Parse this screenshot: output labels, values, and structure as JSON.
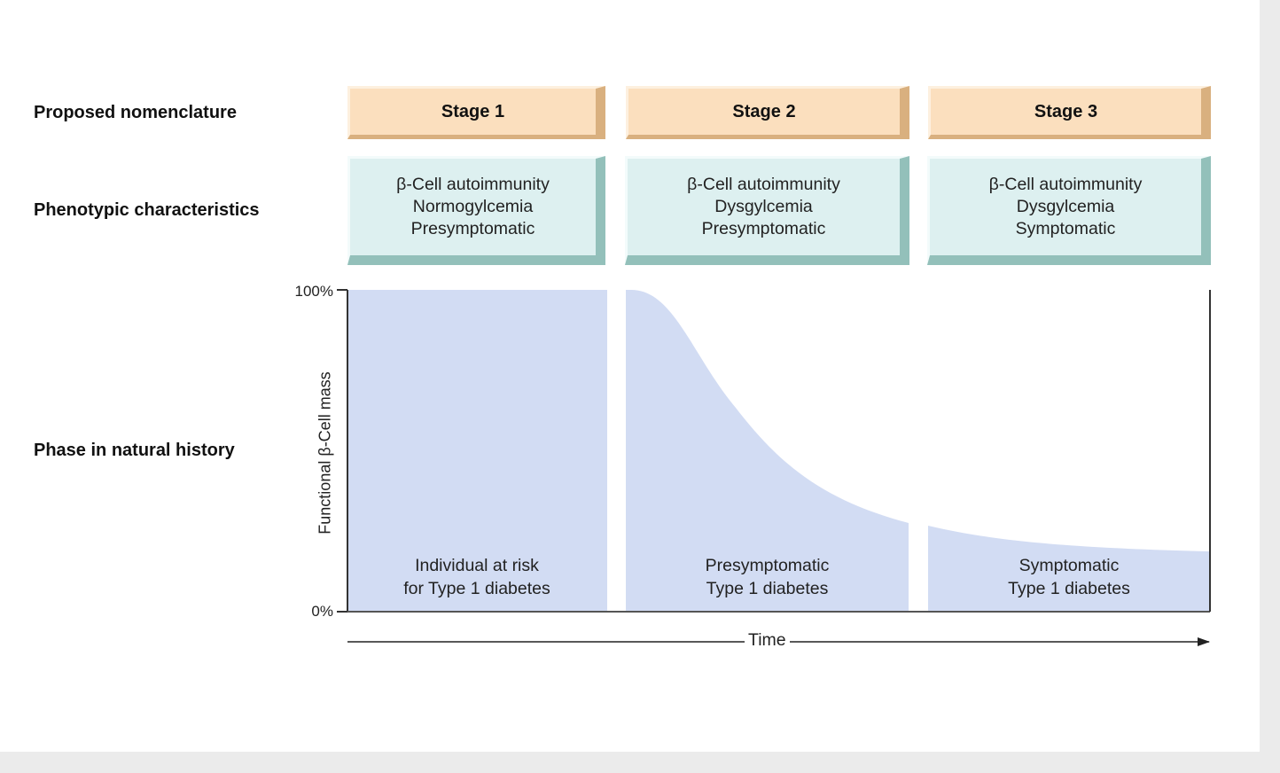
{
  "rows": {
    "nomenclature": "Proposed nomenclature",
    "phenotypic": "Phenotypic characteristics",
    "phase": "Phase in natural history"
  },
  "stages": [
    {
      "label": "Stage 1",
      "lines": [
        "β-Cell autoimmunity",
        "Normogylcemia",
        "Presymptomatic"
      ],
      "phase": [
        "Individual at risk",
        "for Type 1 diabetes"
      ]
    },
    {
      "label": "Stage 2",
      "lines": [
        "β-Cell autoimmunity",
        "Dysgylcemia",
        "Presymptomatic"
      ],
      "phase": [
        "Presymptomatic",
        "Type 1 diabetes"
      ]
    },
    {
      "label": "Stage 3",
      "lines": [
        "β-Cell autoimmunity",
        "Dysgylcemia",
        "Symptomatic"
      ],
      "phase": [
        "Symptomatic",
        "Type 1 diabetes"
      ]
    }
  ],
  "axis": {
    "ylabel": "Functional β-Cell mass",
    "y_max_label": "100%",
    "y_min_label": "0%",
    "xlabel": "Time"
  },
  "colors": {
    "stage_fill": "#fbdfbe",
    "pheno_fill": "#ddf0f0",
    "area_fill": "#d2dcf3"
  }
}
